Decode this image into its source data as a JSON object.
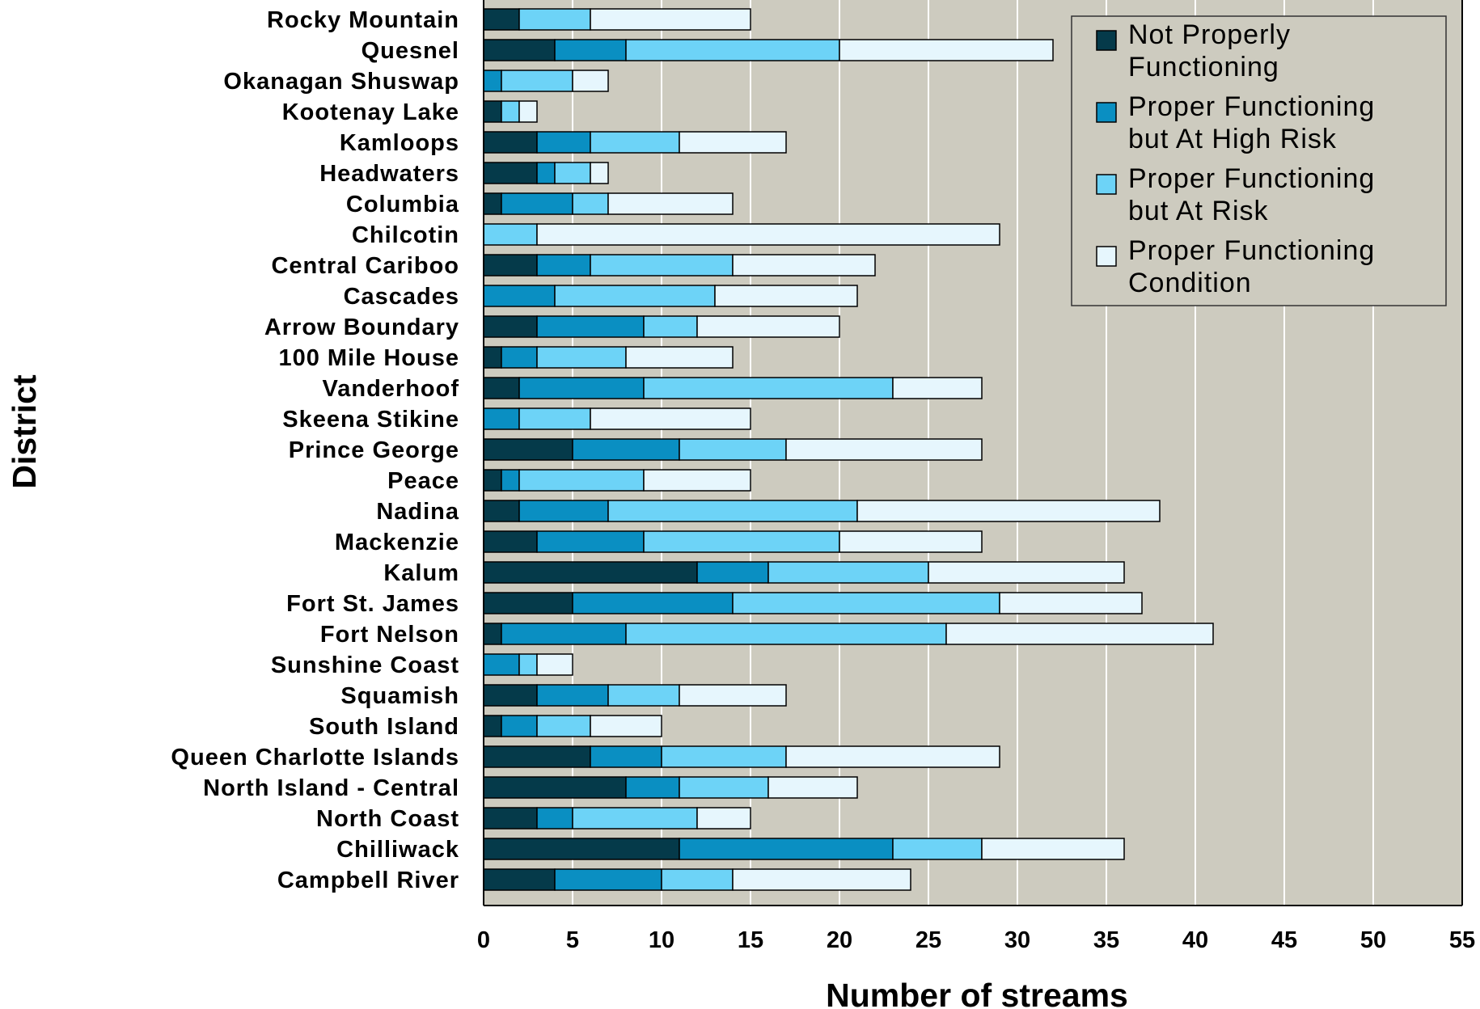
{
  "chart_data": {
    "type": "bar",
    "orientation": "horizontal",
    "stacked": true,
    "xlabel": "Number of streams",
    "ylabel": "District",
    "xlim": [
      0,
      55
    ],
    "x_ticks": [
      0,
      5,
      10,
      15,
      20,
      25,
      30,
      35,
      40,
      45,
      50,
      55
    ],
    "grid": "vertical",
    "legend_position": "top-right",
    "colors": {
      "plot_background": "#cdcbbf",
      "gridline": "#ffffff"
    },
    "categories": [
      "Rocky Mountain",
      "Quesnel",
      "Okanagan Shuswap",
      "Kootenay Lake",
      "Kamloops",
      "Headwaters",
      "Columbia",
      "Chilcotin",
      "Central Cariboo",
      "Cascades",
      "Arrow Boundary",
      "100 Mile House",
      "Vanderhoof",
      "Skeena Stikine",
      "Prince George",
      "Peace",
      "Nadina",
      "Mackenzie",
      "Kalum",
      "Fort St. James",
      "Fort Nelson",
      "Sunshine Coast",
      "Squamish",
      "South Island",
      "Queen Charlotte Islands",
      "North Island - Central",
      "North Coast",
      "Chilliwack",
      "Campbell River"
    ],
    "series": [
      {
        "name": "Not Properly Functioning",
        "color": "#053a4a",
        "values": [
          2,
          4,
          0,
          1,
          3,
          3,
          1,
          0,
          3,
          0,
          3,
          1,
          2,
          0,
          5,
          1,
          2,
          3,
          12,
          5,
          1,
          0,
          3,
          1,
          6,
          8,
          3,
          11,
          4
        ]
      },
      {
        "name": "Proper Functioning but At High Risk",
        "color": "#0a8fc2",
        "values": [
          0,
          4,
          1,
          0,
          3,
          1,
          4,
          0,
          3,
          4,
          6,
          2,
          7,
          2,
          6,
          1,
          5,
          6,
          4,
          9,
          7,
          2,
          4,
          2,
          4,
          3,
          2,
          12,
          6
        ]
      },
      {
        "name": "Proper Functioning but At Risk",
        "color": "#6dd3f7",
        "values": [
          4,
          12,
          4,
          1,
          5,
          2,
          2,
          3,
          8,
          9,
          3,
          5,
          14,
          4,
          6,
          7,
          14,
          11,
          9,
          15,
          18,
          1,
          4,
          3,
          7,
          5,
          7,
          5,
          4
        ]
      },
      {
        "name": "Proper Functioning Condition",
        "color": "#e6f6fd",
        "values": [
          9,
          12,
          2,
          1,
          6,
          1,
          7,
          26,
          8,
          8,
          8,
          6,
          5,
          9,
          11,
          6,
          17,
          8,
          11,
          8,
          15,
          2,
          6,
          4,
          12,
          5,
          3,
          8,
          10
        ]
      }
    ]
  }
}
